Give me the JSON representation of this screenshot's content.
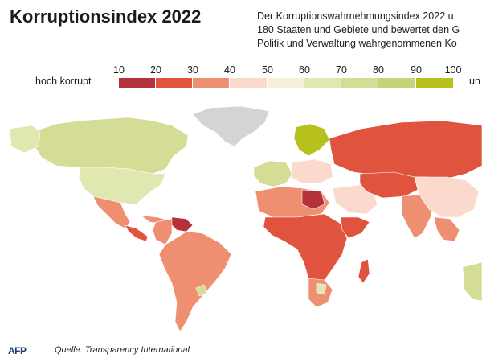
{
  "title": "Korruptionsindex 2022",
  "subtitle_lines": [
    "Der Korruptionswahrnehmungsindex 2022 u",
    "180 Staaten und Gebiete und bewertet den G",
    "Politik und Verwaltung wahrgenommenen Ko"
  ],
  "legend": {
    "label_low": "hoch korrupt",
    "label_high": "un",
    "ticks": [
      "10",
      "20",
      "30",
      "40",
      "50",
      "60",
      "70",
      "80",
      "90",
      "100"
    ],
    "colors": [
      "#b5323c",
      "#e0533f",
      "#ee8f72",
      "#fbd9cc",
      "#f3f2d9",
      "#e1e7b1",
      "#d4dc96",
      "#c8d279",
      "#b7c11e"
    ]
  },
  "map": {
    "no_data_color": "#d4d4d4"
  },
  "footer": {
    "logo": "AFP",
    "source": "Quelle: Transparency International"
  }
}
